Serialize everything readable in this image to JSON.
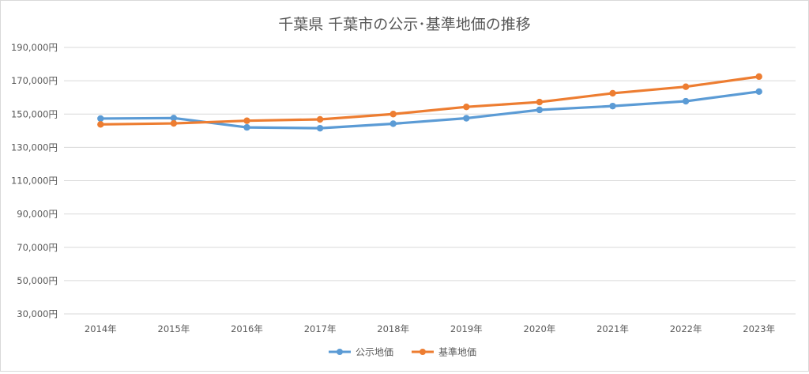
{
  "chart_data": {
    "type": "line",
    "title": "千葉県 千葉市の公示･基準地価の推移",
    "categories": [
      "2014年",
      "2015年",
      "2016年",
      "2017年",
      "2018年",
      "2019年",
      "2020年",
      "2021年",
      "2022年",
      "2023年"
    ],
    "y_ticks": [
      "30,000円",
      "50,000円",
      "70,000円",
      "90,000円",
      "110,000円",
      "130,000円",
      "150,000円",
      "170,000円",
      "190,000円"
    ],
    "ylim": [
      30000,
      190000
    ],
    "grid": true,
    "legend": "bottom",
    "series": [
      {
        "name": "公示地価",
        "color": "#5b9bd5",
        "values": [
          147300,
          147600,
          142000,
          141500,
          144200,
          147500,
          152500,
          154800,
          157700,
          163500
        ]
      },
      {
        "name": "基準地価",
        "color": "#ed7d31",
        "values": [
          143800,
          144400,
          146000,
          146800,
          150000,
          154300,
          157200,
          162500,
          166400,
          172500
        ]
      }
    ]
  }
}
